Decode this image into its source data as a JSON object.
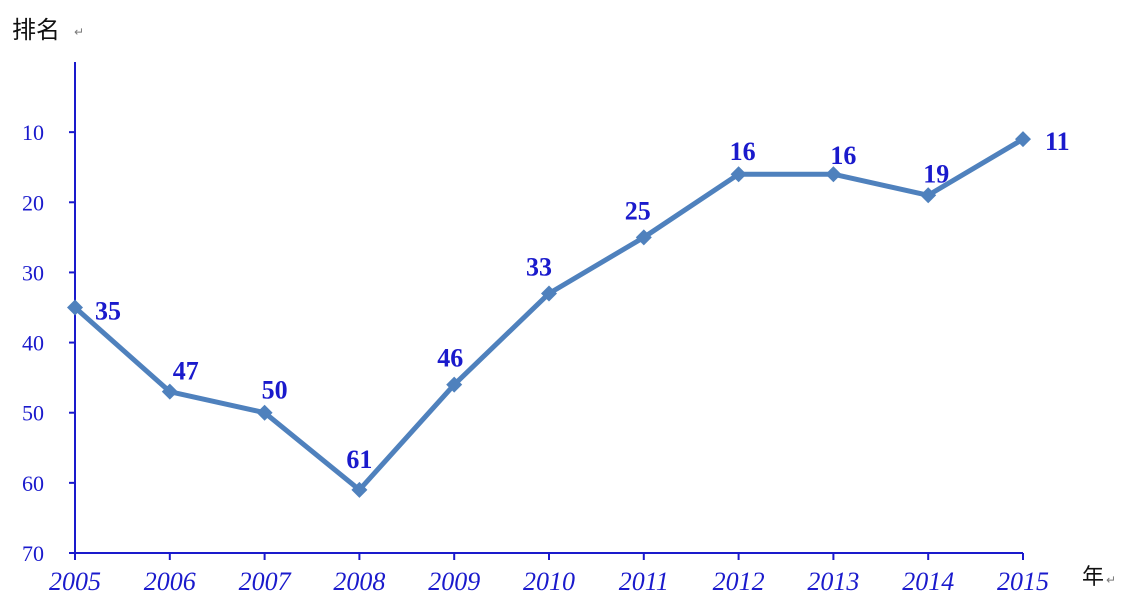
{
  "chart_data": {
    "type": "line",
    "ylabel": "排名",
    "xlabel": "年",
    "ylim": [
      0,
      70
    ],
    "y_inverted": true,
    "yticks": [
      10,
      20,
      30,
      40,
      50,
      60,
      70
    ],
    "categories": [
      "2005",
      "2006",
      "2007",
      "2008",
      "2009",
      "2010",
      "2011",
      "2012",
      "2013",
      "2014",
      "2015"
    ],
    "series": [
      {
        "values": [
          35,
          47,
          50,
          61,
          46,
          33,
          25,
          16,
          16,
          19,
          11
        ]
      }
    ],
    "grid": false,
    "line_color": "#4f81bd",
    "text_color": "#1a1acc",
    "axis_color": "#1a1acc"
  }
}
